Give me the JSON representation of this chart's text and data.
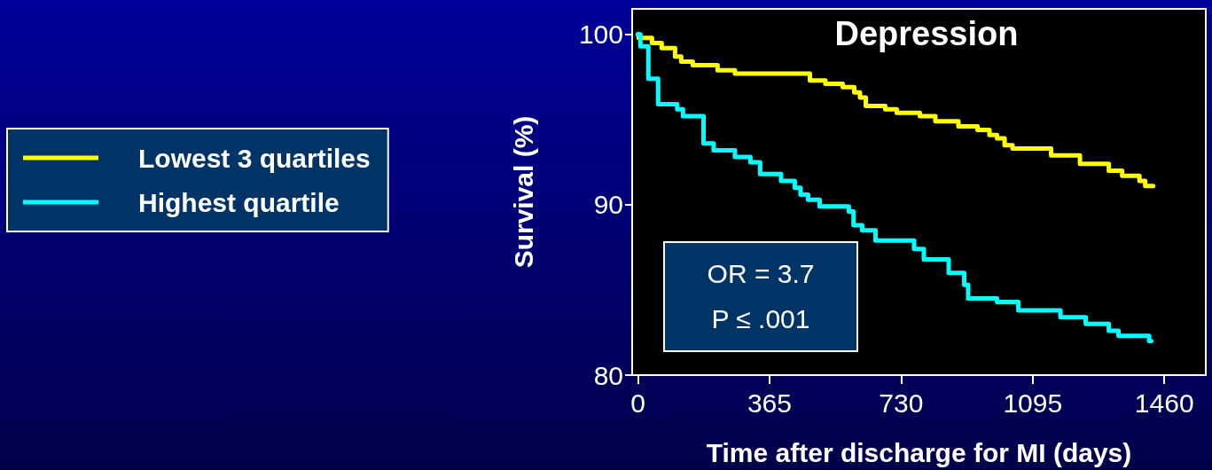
{
  "chart_data": {
    "type": "step",
    "title": "Depression",
    "xlabel": "Time after discharge for MI (days)",
    "ylabel": "Survival (%)",
    "annotations": [
      "OR = 3.7",
      "P ≤ .001"
    ],
    "series": [
      {
        "name": "Lowest 3 quartiles",
        "color": "#ffff00",
        "x": [
          0,
          2,
          39,
          66,
          103,
          120,
          152,
          221,
          269,
          477,
          520,
          568,
          600,
          616,
          632,
          686,
          718,
          782,
          825,
          889,
          942,
          975,
          996,
          1017,
          1039,
          1146,
          1226,
          1306,
          1343,
          1391,
          1407,
          1429
        ],
        "values": [
          100,
          99.8,
          99.5,
          99.2,
          98.7,
          98.4,
          98.2,
          97.9,
          97.7,
          97.3,
          97.1,
          96.9,
          96.6,
          96.3,
          95.8,
          95.6,
          95.4,
          95.2,
          94.9,
          94.6,
          94.4,
          94.1,
          93.9,
          93.5,
          93.3,
          92.9,
          92.4,
          92.0,
          91.7,
          91.4,
          91.1,
          91.1
        ]
      },
      {
        "name": "Highest quartile",
        "color": "#00ffff",
        "x": [
          0,
          7,
          29,
          56,
          109,
          125,
          182,
          210,
          269,
          312,
          339,
          397,
          435,
          451,
          472,
          504,
          585,
          598,
          622,
          659,
          766,
          793,
          862,
          905,
          916,
          996,
          1055,
          1172,
          1242,
          1306,
          1333,
          1418,
          1424
        ],
        "values": [
          100,
          99.3,
          97.4,
          95.9,
          95.6,
          95.2,
          93.6,
          93.2,
          92.8,
          92.5,
          91.8,
          91.4,
          91.0,
          90.6,
          90.3,
          89.9,
          89.6,
          88.8,
          88.5,
          87.9,
          87.4,
          86.8,
          86.0,
          85.3,
          84.5,
          84.3,
          83.8,
          83.4,
          83.0,
          82.6,
          82.3,
          82.0,
          82.0
        ]
      }
    ],
    "xlim": [
      -16,
      1575
    ],
    "xticks": [
      0,
      365,
      730,
      1095,
      1460
    ],
    "ylim": [
      80,
      101.5
    ],
    "yticks": [
      80,
      90,
      100
    ],
    "grid": false,
    "legend": "left",
    "line_style": "solid",
    "marker": "none"
  }
}
